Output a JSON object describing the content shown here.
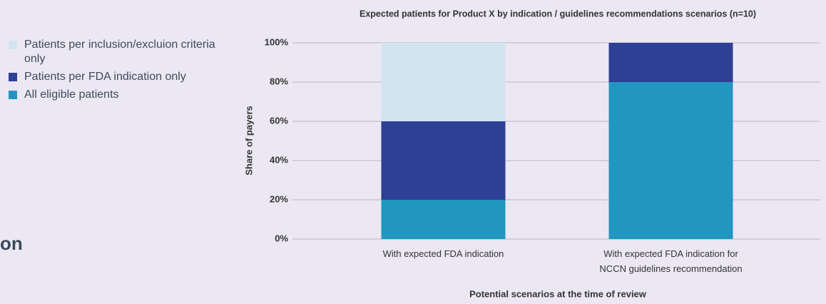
{
  "side_text": "on",
  "chart_data": {
    "type": "stacked_bar",
    "title": "Expected patients for Product X by indication / guidelines recommendations scenarios (n=10)",
    "y_label": "Share of payers",
    "x_label": "Potential scenarios at the time of review",
    "categories": [
      "With expected FDA indication",
      "With expected FDA indication for\nNCCN guidelines recommendation"
    ],
    "series": [
      {
        "name": "Patients per inclusion/excluion criteria only",
        "color": "#d2e4f0",
        "values": [
          40,
          0
        ]
      },
      {
        "name": "Patients per FDA indication only",
        "color": "#2e3f96",
        "values": [
          40,
          20
        ]
      },
      {
        "name": "All eligible patients",
        "color": "#2196c0",
        "values": [
          20,
          80
        ]
      }
    ],
    "ylim": [
      0,
      100
    ],
    "yticks": [
      {
        "value": 0,
        "label": "0%"
      },
      {
        "value": 20,
        "label": "20%"
      },
      {
        "value": 40,
        "label": "40%"
      },
      {
        "value": 60,
        "label": "60%"
      },
      {
        "value": 80,
        "label": "80%"
      },
      {
        "value": 100,
        "label": "100%"
      }
    ],
    "grid": true,
    "legend": "left"
  }
}
